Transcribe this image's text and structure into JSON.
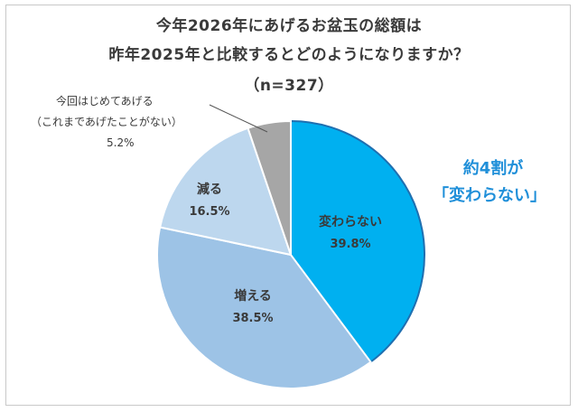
{
  "chart_data": {
    "type": "pie",
    "title_lines": [
      "今年2026年にあげるお盆玉の総額は",
      "昨年2025年と比較するとどのようになりますか？",
      "（n=327）"
    ],
    "slices": [
      {
        "label": "変わらない",
        "value": 39.8,
        "value_label": "39.8%",
        "color": "#00b0f0"
      },
      {
        "label": "増える",
        "value": 38.5,
        "value_label": "38.5%",
        "color": "#9dc3e6"
      },
      {
        "label": "減る",
        "value": 16.5,
        "value_label": "16.5%",
        "color": "#bdd7ee"
      },
      {
        "label": "今回はじめてあげる\n（これまであげたことがない）",
        "value": 5.2,
        "value_label": "5.2%",
        "color": "#a6a6a6"
      }
    ],
    "callout": {
      "line1": "今回はじめてあげる",
      "line2": "（これまであげたことがない）",
      "pct": "5.2%"
    },
    "highlight": {
      "line1": "約4割が",
      "line2": "「変わらない」",
      "color": "#1f8fd9"
    }
  }
}
